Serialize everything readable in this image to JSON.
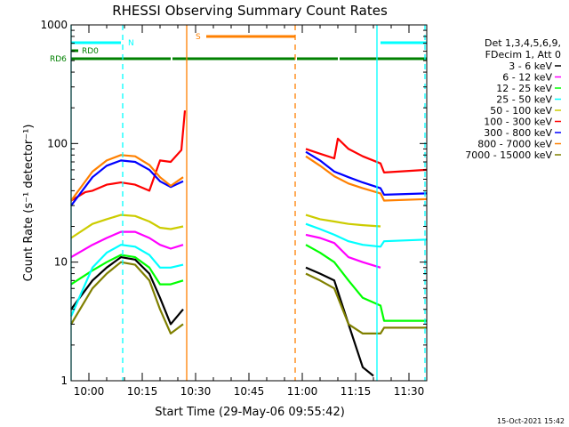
{
  "chart_data": {
    "type": "line",
    "title": "RHESSI Observing Summary Count Rates",
    "xlabel": "Start Time (29-May-06 09:55:42)",
    "ylabel": "Count Rate (s⁻¹ detector⁻¹)",
    "y_scale": "log",
    "ylim": [
      1,
      1000
    ],
    "xlim_minutes_after_0955": [
      0,
      100
    ],
    "x_ticks": [
      {
        "label": "10:00",
        "t": 5
      },
      {
        "label": "10:15",
        "t": 20
      },
      {
        "label": "10:30",
        "t": 35
      },
      {
        "label": "10:45",
        "t": 50
      },
      {
        "label": "11:00",
        "t": 65
      },
      {
        "label": "11:15",
        "t": 80
      },
      {
        "label": "11:30",
        "t": 95
      }
    ],
    "y_ticks": [
      {
        "label": "1",
        "v": 1
      },
      {
        "label": "10",
        "v": 10
      },
      {
        "label": "100",
        "v": 100
      },
      {
        "label": "1000",
        "v": 1000
      }
    ],
    "legend_header": [
      "Det 1,3,4,5,6,9,",
      "FDecim 1, Att 0"
    ],
    "legend_position": "right",
    "series": [
      {
        "name": "3 - 6 keV",
        "color": "#000000",
        "segments": [
          {
            "t": [
              0,
              6,
              10,
              14,
              18,
              22,
              25,
              28,
              31.5
            ],
            "v": [
              4,
              7,
              9,
              11,
              10.5,
              8,
              5,
              3,
              4
            ]
          },
          {
            "t": [
              66,
              70,
              74,
              78,
              82,
              85
            ],
            "v": [
              9,
              8,
              7,
              3,
              1.3,
              1.1
            ]
          }
        ]
      },
      {
        "name": "6 - 12 keV",
        "color": "#ff00ff",
        "segments": [
          {
            "t": [
              0,
              6,
              10,
              14,
              18,
              22,
              25,
              28,
              31.5
            ],
            "v": [
              11,
              14,
              16,
              18,
              18,
              16,
              14,
              13,
              14
            ]
          },
          {
            "t": [
              66,
              70,
              74,
              78,
              82,
              87
            ],
            "v": [
              17,
              16,
              14.5,
              11,
              10,
              9
            ]
          }
        ]
      },
      {
        "name": "12 - 25 keV",
        "color": "#00ff00",
        "segments": [
          {
            "t": [
              0,
              6,
              10,
              14,
              18,
              22,
              25,
              28,
              31.5
            ],
            "v": [
              6.5,
              8.5,
              10,
              11.5,
              11,
              9,
              6.5,
              6.5,
              7
            ]
          },
          {
            "t": [
              66,
              70,
              74,
              78,
              82,
              87,
              88,
              100
            ],
            "v": [
              14,
              12,
              10,
              7,
              5,
              4.3,
              3.2,
              3.2
            ]
          }
        ]
      },
      {
        "name": "25 - 50 keV",
        "color": "#00ffff",
        "segments": [
          {
            "t": [
              0,
              6,
              10,
              14,
              18,
              22,
              25,
              28,
              31.5
            ],
            "v": [
              3.5,
              9,
              12,
              14,
              13.5,
              11.5,
              9,
              9,
              9.5
            ]
          },
          {
            "t": [
              66,
              70,
              74,
              78,
              82,
              87,
              88,
              100
            ],
            "v": [
              21,
              19,
              17,
              15,
              14,
              13.5,
              15,
              15.5
            ]
          }
        ]
      },
      {
        "name": "50 - 100 keV",
        "color": "#cccc00",
        "segments": [
          {
            "t": [
              0,
              6,
              10,
              14,
              18,
              22,
              25,
              28,
              31.5
            ],
            "v": [
              16,
              21,
              23,
              25,
              24.5,
              22,
              19.5,
              19,
              20
            ]
          },
          {
            "t": [
              66,
              70,
              74,
              78,
              82,
              87
            ],
            "v": [
              25,
              23,
              22,
              21,
              20.5,
              20
            ]
          }
        ]
      },
      {
        "name": "100 - 300 keV",
        "color": "#ff0000",
        "segments": [
          {
            "t": [
              0,
              4,
              6,
              10,
              14,
              18,
              22,
              25,
              28,
              31,
              32
            ],
            "v": [
              33,
              39,
              40,
              45,
              47,
              45,
              40,
              72,
              70,
              88,
              190
            ]
          },
          {
            "t": [
              66,
              70,
              74,
              75,
              78,
              82,
              87,
              88,
              100
            ],
            "v": [
              90,
              82,
              75,
              110,
              90,
              78,
              68,
              57,
              60
            ]
          }
        ]
      },
      {
        "name": "300 - 800 keV",
        "color": "#0000ff",
        "segments": [
          {
            "t": [
              0,
              6,
              10,
              14,
              18,
              22,
              25,
              28,
              31.5
            ],
            "v": [
              30,
              52,
              65,
              72,
              70,
              60,
              48,
              43,
              48
            ]
          },
          {
            "t": [
              66,
              70,
              74,
              78,
              82,
              87,
              88,
              100
            ],
            "v": [
              85,
              72,
              58,
              52,
              47,
              42,
              37,
              38
            ]
          }
        ]
      },
      {
        "name": "800 - 7000 keV",
        "color": "#ff8000",
        "segments": [
          {
            "t": [
              0,
              6,
              10,
              14,
              18,
              22,
              25,
              28,
              31.5
            ],
            "v": [
              33,
              58,
              72,
              80,
              78,
              66,
              52,
              44,
              52
            ]
          },
          {
            "t": [
              66,
              70,
              74,
              78,
              82,
              87,
              88,
              100
            ],
            "v": [
              78,
              65,
              53,
              46,
              42,
              38,
              33,
              34
            ]
          }
        ]
      },
      {
        "name": "7000 - 15000 keV",
        "color": "#808000",
        "segments": [
          {
            "t": [
              0,
              6,
              10,
              14,
              18,
              22,
              25,
              28,
              31.5
            ],
            "v": [
              3,
              6,
              8,
              10,
              9.5,
              7,
              4,
              2.5,
              3
            ]
          },
          {
            "t": [
              66,
              70,
              74,
              78,
              82,
              87,
              88,
              100
            ],
            "v": [
              8,
              7,
              6,
              3,
              2.5,
              2.5,
              2.8,
              2.8
            ]
          }
        ]
      }
    ],
    "flags": [
      {
        "label": "N",
        "color": "#00ffff",
        "row": "N",
        "intervals": [
          [
            0,
            14
          ],
          [
            87,
            100
          ]
        ],
        "label_t": 16
      },
      {
        "label": "S",
        "color": "#ff8000",
        "row": "S",
        "intervals": [
          [
            38,
            63
          ]
        ],
        "label_t": 35
      },
      {
        "label": "RD0",
        "color": "#008000",
        "row": "RD0",
        "intervals": [
          [
            0,
            2
          ]
        ],
        "label_t": 3
      },
      {
        "label": "RD6",
        "color": "#008000",
        "row": "RD6",
        "intervals": [
          [
            0,
            28
          ],
          [
            28.5,
            63
          ],
          [
            63.5,
            75
          ],
          [
            75.5,
            100
          ]
        ],
        "label_t": -6
      }
    ],
    "event_lines": [
      {
        "t": 0,
        "color": "#00ffff",
        "style": "solid"
      },
      {
        "t": 14.5,
        "color": "#00ffff",
        "style": "dashed"
      },
      {
        "t": 32.5,
        "color": "#ff8000",
        "style": "solid"
      },
      {
        "t": 63,
        "color": "#ff8000",
        "style": "dashed"
      },
      {
        "t": 86,
        "color": "#00ffff",
        "style": "solid"
      },
      {
        "t": 99.5,
        "color": "#00ffff",
        "style": "dashed"
      }
    ],
    "gap_minutes": [
      32.5,
      65.5
    ],
    "timestamp": "15-Oct-2021 15:42"
  }
}
